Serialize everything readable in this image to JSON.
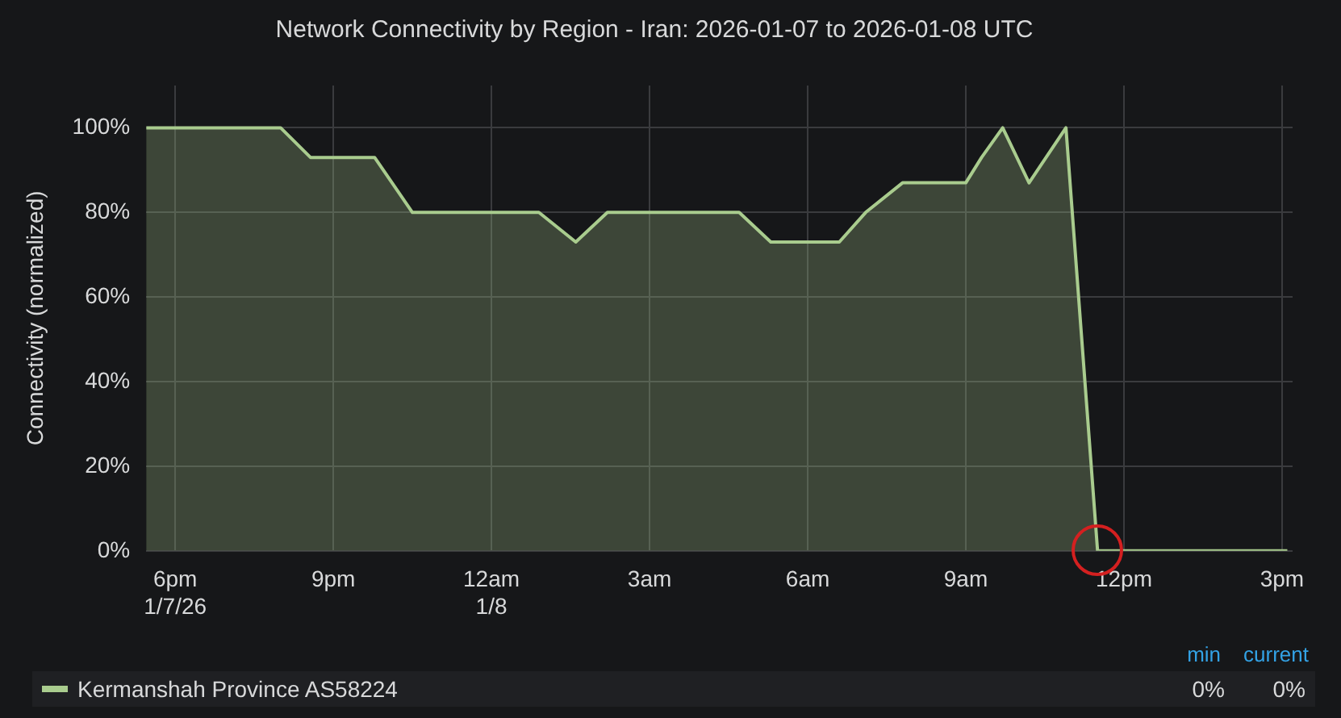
{
  "chart_data": {
    "type": "area",
    "title": "Network Connectivity by Region - Iran: 2026-01-07 to 2026-01-08 UTC",
    "ylabel": "Connectivity (normalized)",
    "x": [
      "2026-01-07T17:27",
      "2026-01-07T20:00",
      "2026-01-07T20:34",
      "2026-01-07T21:47",
      "2026-01-07T22:30",
      "2026-01-08T00:54",
      "2026-01-08T01:36",
      "2026-01-08T02:12",
      "2026-01-08T04:42",
      "2026-01-08T05:18",
      "2026-01-08T06:36",
      "2026-01-08T07:06",
      "2026-01-08T07:48",
      "2026-01-08T09:00",
      "2026-01-08T09:18",
      "2026-01-08T09:42",
      "2026-01-08T10:12",
      "2026-01-08T10:54",
      "2026-01-08T11:30",
      "2026-01-08T15:06"
    ],
    "series": [
      {
        "name": "Kermanshah Province AS58224",
        "color": "#a9cc8e",
        "values": [
          100,
          100,
          93,
          93,
          80,
          80,
          73,
          80,
          80,
          73,
          73,
          80,
          87,
          87,
          93,
          100,
          87,
          100,
          0,
          0
        ]
      }
    ],
    "xlim": [
      "2026-01-07T17:27",
      "2026-01-08T15:12"
    ],
    "xticks": [
      {
        "value": "2026-01-07T18:00",
        "label": "6pm\n1/7/26"
      },
      {
        "value": "2026-01-07T21:00",
        "label": "9pm"
      },
      {
        "value": "2026-01-08T00:00",
        "label": "12am\n1/8"
      },
      {
        "value": "2026-01-08T03:00",
        "label": "3am"
      },
      {
        "value": "2026-01-08T06:00",
        "label": "6am"
      },
      {
        "value": "2026-01-08T09:00",
        "label": "9am"
      },
      {
        "value": "2026-01-08T12:00",
        "label": "12pm"
      },
      {
        "value": "2026-01-08T15:00",
        "label": "3pm"
      }
    ],
    "ylim": [
      0,
      110
    ],
    "yticks": [
      {
        "value": 0,
        "label": "0%"
      },
      {
        "value": 20,
        "label": "20%"
      },
      {
        "value": 40,
        "label": "40%"
      },
      {
        "value": 60,
        "label": "60%"
      },
      {
        "value": 80,
        "label": "80%"
      },
      {
        "value": 100,
        "label": "100%"
      }
    ],
    "grid": true,
    "legend": "bottom",
    "marker": "none",
    "line_style": "solid",
    "annotations": [
      "min",
      "current",
      "0%",
      "0%"
    ]
  }
}
